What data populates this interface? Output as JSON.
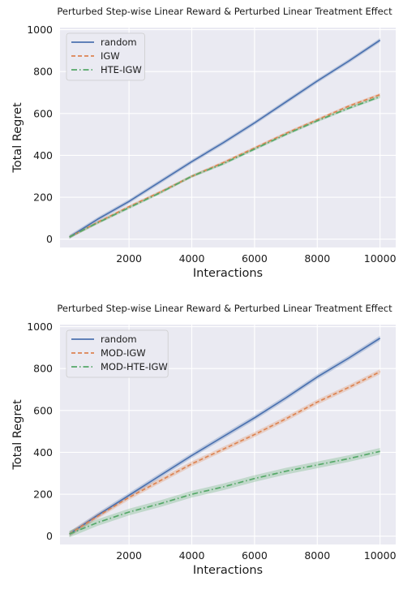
{
  "chart_data": [
    {
      "type": "line",
      "title": "Perturbed Step-wise Linear Reward & Perturbed Linear Treatment Effect",
      "xlabel": "Interactions",
      "ylabel": "Total Regret",
      "xlim": [
        -200,
        10500
      ],
      "ylim": [
        -40,
        1010
      ],
      "xticks": [
        2000,
        4000,
        6000,
        8000,
        10000
      ],
      "yticks": [
        0,
        200,
        400,
        600,
        800,
        1000
      ],
      "x_tick_labels": [
        "2000",
        "4000",
        "6000",
        "8000",
        "10000"
      ],
      "y_tick_labels": [
        "0",
        "200",
        "400",
        "600",
        "800",
        "1000"
      ],
      "grid": true,
      "legend_position": "top-left",
      "x": [
        100,
        1000,
        2000,
        3000,
        4000,
        5000,
        6000,
        7000,
        8000,
        9000,
        10000
      ],
      "series": [
        {
          "name": "random",
          "color": "#4c72b0",
          "dash": "solid",
          "values": [
            10,
            95,
            180,
            275,
            370,
            460,
            555,
            655,
            755,
            850,
            950
          ],
          "band": 10
        },
        {
          "name": "IGW",
          "color": "#dd8452",
          "dash": "dashed",
          "values": [
            10,
            80,
            155,
            225,
            300,
            365,
            435,
            505,
            570,
            635,
            690
          ],
          "band": 7
        },
        {
          "name": "HTE-IGW",
          "color": "#55a868",
          "dash": "dashdot",
          "values": [
            10,
            78,
            150,
            222,
            300,
            360,
            430,
            500,
            565,
            625,
            680
          ],
          "band": 7
        }
      ]
    },
    {
      "type": "line",
      "title": "Perturbed Step-wise Linear Reward & Perturbed Linear Treatment Effect",
      "xlabel": "Interactions",
      "ylabel": "Total Regret",
      "xlim": [
        -200,
        10500
      ],
      "ylim": [
        -40,
        1010
      ],
      "xticks": [
        2000,
        4000,
        6000,
        8000,
        10000
      ],
      "yticks": [
        0,
        200,
        400,
        600,
        800,
        1000
      ],
      "x_tick_labels": [
        "2000",
        "4000",
        "6000",
        "8000",
        "10000"
      ],
      "y_tick_labels": [
        "0",
        "200",
        "400",
        "600",
        "800",
        "1000"
      ],
      "grid": true,
      "legend_position": "top-left",
      "x": [
        100,
        1000,
        2000,
        3000,
        4000,
        5000,
        6000,
        7000,
        8000,
        9000,
        10000
      ],
      "series": [
        {
          "name": "random",
          "color": "#4c72b0",
          "dash": "solid",
          "values": [
            10,
            100,
            195,
            290,
            385,
            475,
            565,
            660,
            760,
            850,
            945
          ],
          "band": 12
        },
        {
          "name": "MOD-IGW",
          "color": "#dd8452",
          "dash": "dashed",
          "values": [
            10,
            95,
            185,
            265,
            345,
            415,
            485,
            560,
            640,
            710,
            785
          ],
          "band": 12
        },
        {
          "name": "MOD-HTE-IGW",
          "color": "#55a868",
          "dash": "dashdot",
          "values": [
            10,
            65,
            115,
            155,
            200,
            235,
            275,
            310,
            340,
            370,
            405
          ],
          "band": 16
        }
      ]
    }
  ]
}
